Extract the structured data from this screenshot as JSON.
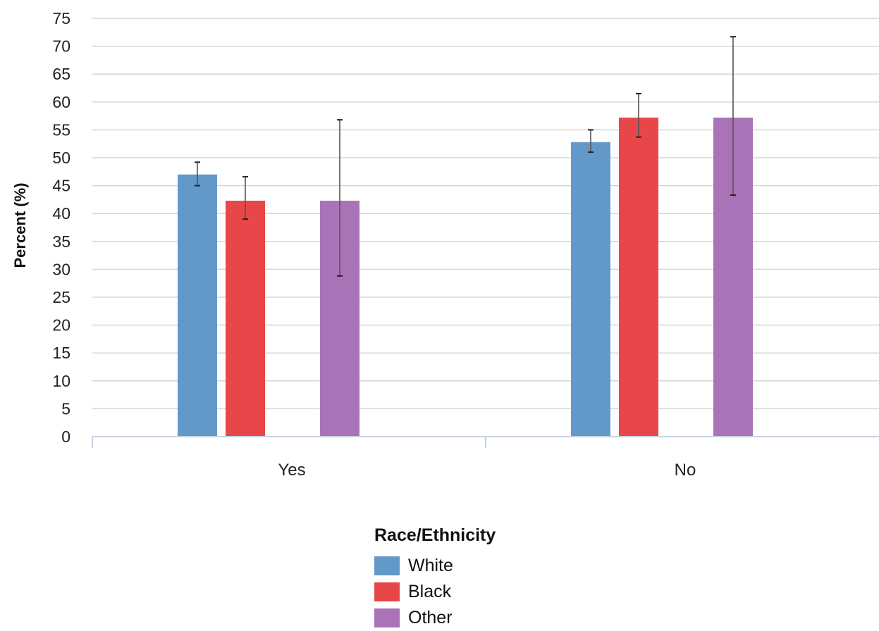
{
  "chart_data": {
    "type": "bar",
    "title": "",
    "xlabel": "",
    "ylabel": "Percent (%)",
    "ylim": [
      0,
      75
    ],
    "yticks": [
      0,
      5,
      10,
      15,
      20,
      25,
      30,
      35,
      40,
      45,
      50,
      55,
      60,
      65,
      70,
      75
    ],
    "grid": true,
    "categories": [
      "Yes",
      "No"
    ],
    "legend": {
      "title": "Race/Ethnicity",
      "position": "bottom-center"
    },
    "series": [
      {
        "name": "White",
        "color": "#6399c9",
        "values": [
          47,
          52.8
        ],
        "error_low": [
          45,
          51
        ],
        "error_high": [
          49.2,
          55
        ]
      },
      {
        "name": "Black",
        "color": "#e8474a",
        "values": [
          42.3,
          57.2
        ],
        "error_low": [
          39,
          53.7
        ],
        "error_high": [
          46.6,
          61.5
        ]
      },
      {
        "name": "Other",
        "color": "#aa73b8",
        "values": [
          42.3,
          57.2
        ],
        "error_low": [
          28.8,
          43.3
        ],
        "error_high": [
          56.8,
          71.7
        ]
      }
    ]
  }
}
